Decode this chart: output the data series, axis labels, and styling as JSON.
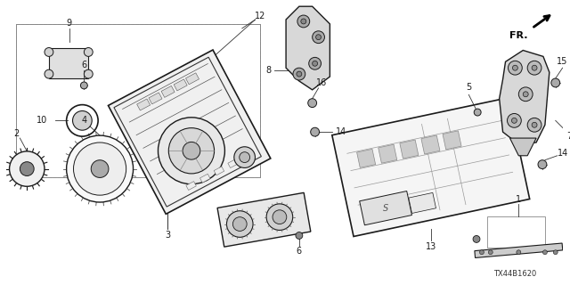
{
  "diagram_code": "TX44B1620",
  "fr_label": "FR.",
  "background_color": "#ffffff",
  "line_color": "#1a1a1a",
  "figsize": [
    6.4,
    3.2
  ],
  "dpi": 100,
  "parts": {
    "main_unit_tilt_deg": -30,
    "nav_unit_tilt_deg": -18
  }
}
